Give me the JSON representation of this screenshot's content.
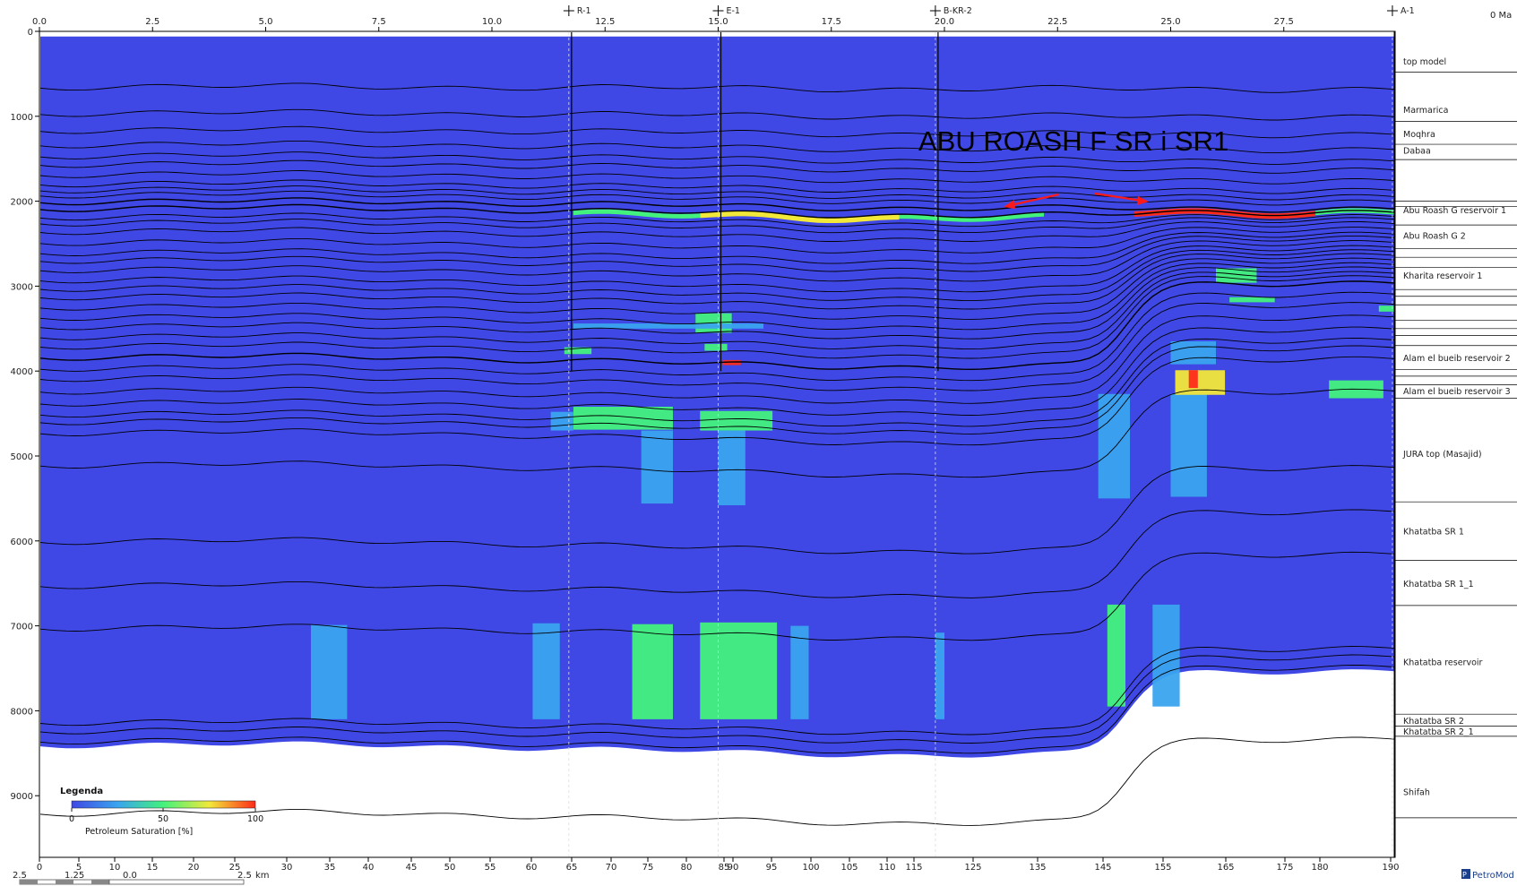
{
  "age_label": "0 Ma",
  "logo": "PetroMod",
  "annotation": "ABU ROASH F SR i SR1",
  "colors": {
    "background_fill": "#3f48e4",
    "unit_stroke": "#000000",
    "arrow": "#ff1a1a"
  },
  "chart_data": {
    "type": "heatmap",
    "x_top": {
      "ticks": [
        "0.0",
        "2.5",
        "5.0",
        "7.5",
        "10.0",
        "12.5",
        "15.0",
        "17.5",
        "20.0",
        "22.5",
        "25.0",
        "27.5"
      ],
      "values": [
        0,
        2.5,
        5,
        7.5,
        10,
        12.5,
        15,
        17.5,
        20,
        22.5,
        25,
        27.5
      ],
      "range": [
        0,
        30
      ]
    },
    "x_bottom": {
      "ticks": [
        "0",
        "5",
        "10",
        "15",
        "20",
        "25",
        "30",
        "35",
        "40",
        "45",
        "50",
        "55",
        "60",
        "65",
        "70",
        "75",
        "80",
        "85",
        "90",
        "95",
        "100",
        "105",
        "110",
        "115",
        "125",
        "135",
        "145",
        "155",
        "165",
        "175",
        "180",
        "190"
      ],
      "values": [
        0,
        5,
        10,
        15,
        20,
        25,
        30,
        35,
        40,
        45,
        50,
        55,
        60,
        65,
        70,
        75,
        80,
        85,
        90,
        95,
        100,
        105,
        110,
        115,
        125,
        135,
        145,
        155,
        165,
        175,
        180,
        190
      ]
    },
    "scale_bar": {
      "labels": [
        "2.5",
        "1.25",
        "0.0",
        "2.5"
      ],
      "unit": "km"
    },
    "y": {
      "ticks": [
        "0",
        "1000",
        "2000",
        "3000",
        "4000",
        "5000",
        "6000",
        "7000",
        "8000",
        "9000"
      ],
      "values": [
        0,
        1000,
        2000,
        3000,
        4000,
        5000,
        6000,
        7000,
        8000,
        9000
      ],
      "range": [
        0,
        9600
      ],
      "inverted": true
    },
    "wells": [
      {
        "name": "R-1",
        "x": 11.7
      },
      {
        "name": "E-1",
        "x": 15.0
      },
      {
        "name": "B-KR-2",
        "x": 19.8
      },
      {
        "name": "A-1",
        "x": 29.9
      }
    ],
    "layers": [
      {
        "name": "top model",
        "depth": 350
      },
      {
        "name": "Marmarica",
        "depth": 920
      },
      {
        "name": "Moqhra",
        "depth": 1200
      },
      {
        "name": "Dabaa",
        "depth": 1400
      },
      {
        "name": "Abu Roash G reservoir 1",
        "depth": 2100
      },
      {
        "name": "Abu Roash G 2",
        "depth": 2400
      },
      {
        "name": "Kharita reservoir 1",
        "depth": 2870
      },
      {
        "name": "Alam el bueib reservoir 2",
        "depth": 3840
      },
      {
        "name": "Alam el bueib reservoir 3",
        "depth": 4230
      },
      {
        "name": "JURA top (Masajid)",
        "depth": 4970
      },
      {
        "name": "Khatatba SR 1",
        "depth": 5880
      },
      {
        "name": "Khatatba SR 1_1",
        "depth": 6500
      },
      {
        "name": "Khatatba reservoir",
        "depth": 7420
      },
      {
        "name": "Khatatba SR 2",
        "depth": 8110
      },
      {
        "name": "Khatatba SR 2_1",
        "depth": 8240
      },
      {
        "name": "Shifah",
        "depth": 8950
      }
    ],
    "legend": {
      "title": "Legenda",
      "label": "Petroleum Saturation [%]",
      "ticks": [
        "0",
        "50",
        "100"
      ],
      "tick_values": [
        0,
        50,
        100
      ],
      "colors": [
        "#3f48e4",
        "#3aa4ee",
        "#43f27c",
        "#f2e83a",
        "#ff2a1a"
      ]
    }
  }
}
